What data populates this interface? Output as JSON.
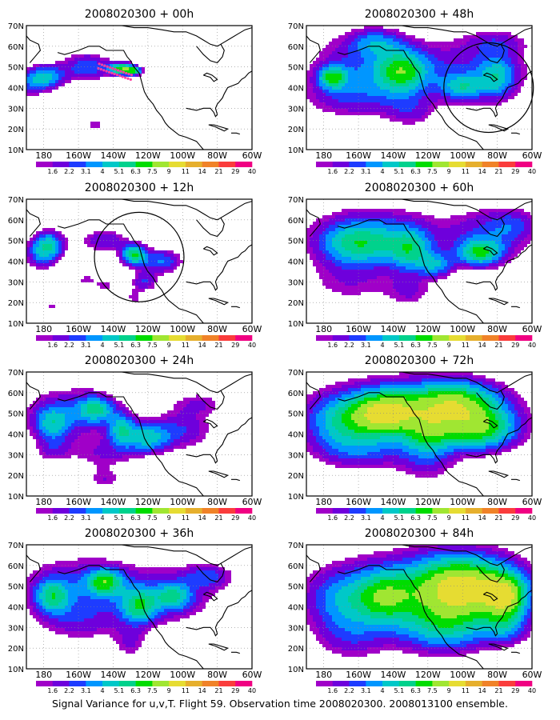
{
  "caption": "Signal Variance for u,v,T. Flight 59. Observation time 2008020300. 2008013100 ensemble.",
  "colorbar": {
    "levels": [
      "1.6",
      "2.2",
      "3.1",
      "4",
      "5.1",
      "6.3",
      "7.5",
      "9",
      "11",
      "14",
      "21",
      "29",
      "40"
    ],
    "colors": [
      "#a000c8",
      "#6e00dc",
      "#1e3cff",
      "#0096ff",
      "#00c8c8",
      "#00d28c",
      "#00dc00",
      "#a0e632",
      "#e6dc32",
      "#e6af2d",
      "#f08228",
      "#fa3c3c",
      "#f00082"
    ]
  },
  "map": {
    "lat_labels": [
      "70N",
      "60N",
      "50N",
      "40N",
      "30N",
      "20N",
      "10N"
    ],
    "lon_labels": [
      "180",
      "160W",
      "140W",
      "120W",
      "100W",
      "80W",
      "60W"
    ],
    "lon_range": [
      170,
      300
    ],
    "lat_range": [
      10,
      70
    ],
    "grid": "dotted"
  },
  "chart_data": [
    {
      "type": "heatmap",
      "title": "2008020300 + 00h",
      "circle": null,
      "blobs": [
        [
          182,
          45,
          10,
          6,
          5
        ],
        [
          172,
          42,
          8,
          7,
          3
        ],
        [
          205,
          50,
          14,
          7,
          4
        ],
        [
          225,
          49,
          7,
          3,
          8
        ],
        [
          232,
          48,
          5,
          2,
          6
        ],
        [
          210,
          22,
          6,
          4,
          2
        ],
        [
          200,
          17,
          5,
          3,
          1.5
        ]
      ]
    },
    {
      "type": "heatmap",
      "title": "2008020300 + 48h",
      "circle": [
        -85,
        40,
        6
      ],
      "blobs": [
        [
          200,
          50,
          30,
          18,
          3
        ],
        [
          260,
          48,
          42,
          16,
          3
        ],
        [
          185,
          45,
          8,
          5,
          6
        ],
        [
          225,
          48,
          14,
          10,
          6
        ],
        [
          260,
          40,
          12,
          6,
          4
        ],
        [
          195,
          35,
          30,
          10,
          2
        ],
        [
          230,
          28,
          14,
          8,
          2
        ],
        [
          280,
          45,
          10,
          10,
          4
        ],
        [
          210,
          62,
          14,
          6,
          3
        ],
        [
          280,
          62,
          18,
          6,
          2
        ]
      ]
    },
    {
      "type": "heatmap",
      "title": "2008020300 + 12h",
      "circle": [
        -125,
        42,
        6
      ],
      "blobs": [
        [
          183,
          48,
          9,
          7,
          5
        ],
        [
          178,
          43,
          10,
          8,
          3
        ],
        [
          215,
          50,
          14,
          6,
          3
        ],
        [
          232,
          43,
          7,
          5,
          7
        ],
        [
          248,
          40,
          12,
          6,
          4
        ],
        [
          238,
          30,
          8,
          5,
          3
        ],
        [
          205,
          31,
          6,
          4,
          2
        ],
        [
          215,
          28,
          5,
          4,
          2
        ],
        [
          232,
          22,
          4,
          4,
          2
        ],
        [
          185,
          18,
          4,
          3,
          2
        ]
      ]
    },
    {
      "type": "heatmap",
      "title": "2008020300 + 60h",
      "circle": null,
      "blobs": [
        [
          210,
          54,
          40,
          14,
          3
        ],
        [
          275,
          52,
          25,
          14,
          3
        ],
        [
          200,
          48,
          22,
          10,
          5
        ],
        [
          230,
          45,
          12,
          10,
          5
        ],
        [
          270,
          44,
          12,
          6,
          6
        ],
        [
          245,
          38,
          10,
          6,
          4
        ],
        [
          195,
          30,
          28,
          12,
          2
        ],
        [
          230,
          25,
          14,
          8,
          2
        ],
        [
          290,
          58,
          14,
          8,
          2
        ]
      ]
    },
    {
      "type": "heatmap",
      "title": "2008020300 + 24h",
      "circle": null,
      "blobs": [
        [
          195,
          50,
          28,
          14,
          3
        ],
        [
          185,
          45,
          10,
          8,
          4
        ],
        [
          210,
          52,
          10,
          6,
          5
        ],
        [
          225,
          42,
          8,
          8,
          5
        ],
        [
          240,
          38,
          12,
          7,
          5
        ],
        [
          260,
          42,
          18,
          10,
          3
        ],
        [
          215,
          30,
          20,
          8,
          2
        ],
        [
          185,
          32,
          10,
          6,
          2
        ],
        [
          215,
          18,
          10,
          5,
          2
        ],
        [
          270,
          55,
          16,
          6,
          2
        ]
      ]
    },
    {
      "type": "heatmap",
      "title": "2008020300 + 72h",
      "circle": null,
      "blobs": [
        [
          230,
          52,
          55,
          16,
          4
        ],
        [
          190,
          46,
          20,
          12,
          4
        ],
        [
          215,
          50,
          18,
          10,
          8
        ],
        [
          255,
          55,
          25,
          10,
          7
        ],
        [
          270,
          42,
          22,
          10,
          7
        ],
        [
          240,
          40,
          14,
          10,
          5
        ],
        [
          200,
          32,
          28,
          10,
          3
        ],
        [
          240,
          25,
          18,
          10,
          2
        ]
      ]
    },
    {
      "type": "heatmap",
      "title": "2008020300 + 36h",
      "circle": null,
      "blobs": [
        [
          200,
          50,
          35,
          16,
          3
        ],
        [
          250,
          45,
          30,
          14,
          3
        ],
        [
          185,
          45,
          10,
          8,
          5
        ],
        [
          215,
          52,
          10,
          6,
          6
        ],
        [
          235,
          40,
          10,
          8,
          5
        ],
        [
          255,
          45,
          10,
          6,
          4
        ],
        [
          200,
          32,
          25,
          10,
          2
        ],
        [
          230,
          22,
          10,
          8,
          2
        ],
        [
          275,
          55,
          14,
          6,
          3
        ]
      ]
    },
    {
      "type": "heatmap",
      "title": "2008020300 + 84h",
      "circle": null,
      "blobs": [
        [
          240,
          45,
          60,
          22,
          4
        ],
        [
          190,
          44,
          20,
          14,
          3
        ],
        [
          260,
          50,
          28,
          14,
          9
        ],
        [
          285,
          45,
          12,
          10,
          7
        ],
        [
          215,
          45,
          16,
          12,
          5
        ],
        [
          250,
          30,
          25,
          12,
          4
        ],
        [
          195,
          25,
          20,
          12,
          2
        ],
        [
          285,
          30,
          12,
          8,
          3
        ]
      ]
    }
  ]
}
